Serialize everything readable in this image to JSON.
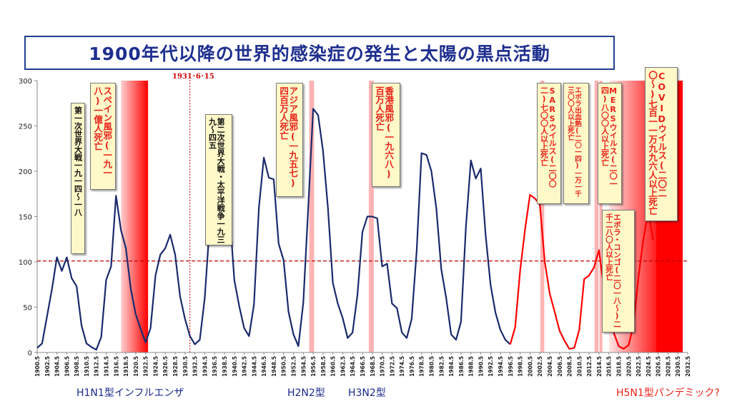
{
  "title": "1900年代以降の世界的感染症の発生と太陽の黒点活動",
  "date_marker": "1931･6･15",
  "notes": [
    {
      "id": "ww1",
      "text": "第一次世界大戦一九一四〜一八",
      "color": "black"
    },
    {
      "id": "spanish",
      "text": "スペイン風邪(一九一八)一億人死亡",
      "color": "red"
    },
    {
      "id": "ww2",
      "text": "第二次世界大戦・太平洋戦争一九三九〜四五",
      "color": "black"
    },
    {
      "id": "asian",
      "text": "アジア風邪(一九五七)四百万人死亡",
      "color": "red"
    },
    {
      "id": "hongkong",
      "text": "香港風邪(一九六八)百万人死亡",
      "color": "red"
    },
    {
      "id": "sars",
      "text": "SARSウイルス(二〇〇二)七〇〇人以上死亡",
      "color": "red"
    },
    {
      "id": "ebola2014",
      "text": "エボラ出血熱(二〇一四)一万一千三〇〇人以上死亡",
      "color": "red"
    },
    {
      "id": "mers",
      "text": "MERSウイルス(二〇一四)八〇〇人以上死亡",
      "color": "red"
    },
    {
      "id": "covid",
      "text": "COVIDウイルス(二〇二〇〜)七百一一万九九六人以上死亡",
      "color": "red"
    },
    {
      "id": "ebola2018",
      "text": "エボラ・コンゴ(二〇一八〜)二千二八〇人以上死亡",
      "color": "red"
    }
  ],
  "bottom_labels": {
    "h1n1": "H1N1型インフルエンザ",
    "h2n2": "H2N2型",
    "h3n2": "H3N2型",
    "h5n1": "H5N1型パンデミック?"
  },
  "colors": {
    "past_series": "#1a2a6c",
    "forecast_series": "#ff0000",
    "band": "#ffb3b3",
    "band_strong": "#ff0000",
    "threshold": "#c00000"
  },
  "chart_data": {
    "type": "line",
    "title": "1900年代以降の世界的感染症の発生と太陽の黒点活動",
    "xlabel": "",
    "ylabel": "",
    "xlim": [
      1900.5,
      2032.5
    ],
    "ylim": [
      0,
      300
    ],
    "x_tick_labels": [
      "1900.5",
      "1902.5",
      "1904.5",
      "1906.5",
      "1908.5",
      "1910.5",
      "1912.5",
      "1914.5",
      "1916.5",
      "1918.5",
      "1920.5",
      "1922.5",
      "1924.5",
      "1926.5",
      "1928.5",
      "1930.5",
      "1932.5",
      "1934.5",
      "1936.5",
      "1938.5",
      "1940.5",
      "1942.5",
      "1944.5",
      "1946.5",
      "1948.5",
      "1950.5",
      "1952.5",
      "1954.5",
      "1956.5",
      "1958.5",
      "1960.5",
      "1962.5",
      "1964.5",
      "1966.5",
      "1968.5",
      "1970.5",
      "1972.5",
      "1974.5",
      "1976.5",
      "1978.5",
      "1980.5",
      "1982.5",
      "1984.5",
      "1986.5",
      "1988.5",
      "1990.5",
      "1992.5",
      "1994.5",
      "1996.5",
      "1998.5",
      "2000.5",
      "2002.5",
      "2004.5",
      "2006.5",
      "2008.5",
      "2010.5",
      "2012.5",
      "2014.5",
      "2016.5",
      "2018.5",
      "2020.5",
      "2022.5",
      "2024.5",
      "2026.5",
      "2028.5",
      "2030.5",
      "2032.5"
    ],
    "y_ticks": [
      0,
      50,
      100,
      150,
      200,
      250,
      300
    ],
    "threshold": 101,
    "grid": false,
    "series": [
      {
        "values_x": [
          1900.5,
          1901.5,
          1902.5,
          1903.5,
          1904.5,
          1905.5,
          1906.5,
          1907.5,
          1908.5,
          1909.5,
          1910.5,
          1911.5,
          1912.5,
          1913.5,
          1914.5,
          1915.5,
          1916.5,
          1917.5,
          1918.5,
          1919.5,
          1920.5,
          1921.5,
          1922.5,
          1923.5,
          1924.5,
          1925.5,
          1926.5,
          1927.5,
          1928.5,
          1929.5,
          1930.5,
          1931.5,
          1932.5,
          1933.5,
          1934.5,
          1935.5,
          1936.5,
          1937.5,
          1938.5,
          1939.5,
          1940.5,
          1941.5,
          1942.5,
          1943.5,
          1944.5,
          1945.5,
          1946.5,
          1947.5,
          1948.5,
          1949.5,
          1950.5,
          1951.5,
          1952.5,
          1953.5,
          1954.5,
          1955.5,
          1956.5,
          1957.5,
          1958.5,
          1959.5,
          1960.5,
          1961.5,
          1962.5,
          1963.5,
          1964.5,
          1965.5,
          1966.5,
          1967.5,
          1968.5,
          1969.5,
          1970.5,
          1971.5,
          1972.5,
          1973.5,
          1974.5,
          1975.5,
          1976.5,
          1977.5,
          1978.5,
          1979.5,
          1980.5,
          1981.5,
          1982.5,
          1983.5,
          1984.5,
          1985.5,
          1986.5,
          1987.5,
          1988.5,
          1989.5,
          1990.5,
          1991.5,
          1992.5,
          1993.5,
          1994.5,
          1995.5,
          1996.5
        ],
        "values": [
          5,
          10,
          40,
          70,
          105,
          90,
          105,
          82,
          73,
          30,
          10,
          6,
          3,
          17,
          80,
          95,
          173,
          135,
          115,
          70,
          42,
          26,
          11,
          27,
          85,
          108,
          115,
          130,
          108,
          62,
          37,
          18,
          9,
          14,
          60,
          140,
          160,
          145,
          172,
          158,
          80,
          51,
          27,
          18,
          53,
          160,
          215,
          193,
          191,
          120,
          102,
          45,
          20,
          7,
          55,
          160,
          269,
          262,
          223,
          160,
          77,
          54,
          38,
          16,
          22,
          64,
          133,
          150,
          150,
          148,
          95,
          98,
          54,
          49,
          22,
          16,
          37,
          111,
          220,
          218,
          200,
          159,
          92,
          60,
          20,
          14,
          34,
          139,
          212,
          192,
          203,
          130,
          75,
          44,
          25,
          14,
          9
        ]
      },
      {
        "values_x": [
          1996.5,
          1997.5,
          1998.5,
          1999.5,
          2000.5,
          2001.5,
          2002.5,
          2003.5,
          2004.5,
          2005.5,
          2006.5,
          2007.5,
          2008.5,
          2009.5,
          2010.5,
          2011.5,
          2012.5,
          2013.5,
          2014.5,
          2015.5,
          2016.5,
          2017.5,
          2018.5,
          2019.5,
          2020.5,
          2021.5,
          2022.5,
          2023.5,
          2024.5,
          2025.5
        ],
        "values": [
          9,
          28,
          90,
          136,
          174,
          170,
          163,
          100,
          65,
          45,
          24,
          13,
          4,
          5,
          25,
          81,
          85,
          94,
          113,
          70,
          40,
          22,
          7,
          4,
          8,
          30,
          83,
          125,
          155,
          124
        ]
      }
    ],
    "bands": [
      {
        "from": 1917.5,
        "to": 1923.0,
        "kind": "gradient"
      },
      {
        "from": 1955.7,
        "to": 1956.7,
        "kind": "light"
      },
      {
        "from": 1967.8,
        "to": 1968.8,
        "kind": "light"
      },
      {
        "from": 2002.6,
        "to": 2003.4,
        "kind": "light"
      },
      {
        "from": 2013.6,
        "to": 2014.4,
        "kind": "light"
      },
      {
        "from": 2014.6,
        "to": 2015.2,
        "kind": "light"
      },
      {
        "from": 2016.5,
        "to": 2026.0,
        "kind": "gradient"
      },
      {
        "from": 2026.0,
        "to": 2031.5,
        "kind": "solid"
      }
    ],
    "date_marker_x": 1931.5
  }
}
